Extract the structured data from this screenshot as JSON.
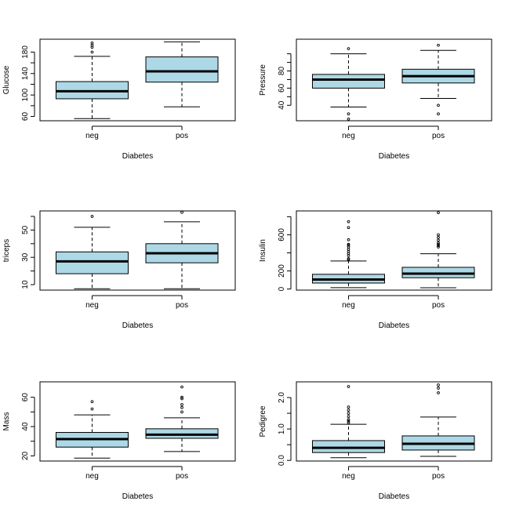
{
  "chart_data": [
    {
      "type": "boxplot",
      "panel": "top-left",
      "xlabel": "Diabetes",
      "ylabel": "Glucose",
      "categories": [
        "neg",
        "pos"
      ],
      "ylim": [
        52,
        204
      ],
      "yticks": [
        60,
        100,
        140,
        180
      ],
      "yticks_labeled": [
        "60",
        "100",
        "140",
        "180"
      ],
      "yticks_minor": [
        80,
        120,
        160
      ],
      "fill": "#add8e6",
      "boxes": [
        {
          "name": "neg",
          "q1": 93,
          "median": 107,
          "q3": 125,
          "whisker_low": 56,
          "whisker_high": 172,
          "outliers": [
            180,
            189,
            193,
            197
          ]
        },
        {
          "name": "pos",
          "q1": 124,
          "median": 144,
          "q3": 171,
          "whisker_low": 78,
          "whisker_high": 199,
          "outliers": []
        }
      ]
    },
    {
      "type": "boxplot",
      "panel": "top-right",
      "xlabel": "Diabetes",
      "ylabel": "Pressure",
      "categories": [
        "neg",
        "pos"
      ],
      "ylim": [
        22,
        117
      ],
      "yticks": [
        40,
        60,
        80
      ],
      "yticks_labeled": [
        "40",
        "60",
        "80"
      ],
      "yticks_minor": [
        50,
        70,
        90,
        100
      ],
      "fill": "#add8e6",
      "boxes": [
        {
          "name": "neg",
          "q1": 60,
          "median": 70,
          "q3": 76,
          "whisker_low": 38,
          "whisker_high": 100,
          "outliers": [
            24,
            30,
            106
          ]
        },
        {
          "name": "pos",
          "q1": 66,
          "median": 74,
          "q3": 82,
          "whisker_low": 48,
          "whisker_high": 104,
          "outliers": [
            30,
            40,
            110
          ]
        }
      ]
    },
    {
      "type": "boxplot",
      "panel": "middle-left",
      "xlabel": "Diabetes",
      "ylabel": "triceps",
      "categories": [
        "neg",
        "pos"
      ],
      "ylim": [
        6,
        64
      ],
      "yticks": [
        10,
        30,
        50
      ],
      "yticks_labeled": [
        "10",
        "30",
        "50"
      ],
      "yticks_minor": [
        20,
        40,
        60
      ],
      "fill": "#add8e6",
      "boxes": [
        {
          "name": "neg",
          "q1": 18,
          "median": 27,
          "q3": 34,
          "whisker_low": 7,
          "whisker_high": 52,
          "outliers": [
            60
          ]
        },
        {
          "name": "pos",
          "q1": 26,
          "median": 33,
          "q3": 40,
          "whisker_low": 7,
          "whisker_high": 56,
          "outliers": [
            63
          ]
        }
      ]
    },
    {
      "type": "boxplot",
      "panel": "middle-right",
      "xlabel": "Diabetes",
      "ylabel": "Insulin",
      "categories": [
        "neg",
        "pos"
      ],
      "ylim": [
        -12,
        864
      ],
      "yticks": [
        0,
        200,
        600
      ],
      "yticks_labeled": [
        "0",
        "200",
        "600"
      ],
      "yticks_minor": [
        400,
        800
      ],
      "fill": "#add8e6",
      "boxes": [
        {
          "name": "neg",
          "q1": 66,
          "median": 105,
          "q3": 163,
          "whisker_low": 15,
          "whisker_high": 310,
          "outliers": [
            325,
            335,
            370,
            392,
            415,
            440,
            465,
            485,
            495,
            545,
            680,
            745
          ]
        },
        {
          "name": "pos",
          "q1": 125,
          "median": 170,
          "q3": 240,
          "whisker_low": 14,
          "whisker_high": 390,
          "outliers": [
            465,
            480,
            495,
            510,
            540,
            570,
            600,
            845
          ]
        }
      ]
    },
    {
      "type": "boxplot",
      "panel": "bottom-left",
      "xlabel": "Diabetes",
      "ylabel": "Mass",
      "categories": [
        "neg",
        "pos"
      ],
      "ylim": [
        16.5,
        70.5
      ],
      "yticks": [
        20,
        40,
        60
      ],
      "yticks_labeled": [
        "20",
        "40",
        "60"
      ],
      "yticks_minor": [
        30,
        50
      ],
      "fill": "#add8e6",
      "boxes": [
        {
          "name": "neg",
          "q1": 26,
          "median": 31.5,
          "q3": 36,
          "whisker_low": 18.5,
          "whisker_high": 48,
          "outliers": [
            52,
            57
          ]
        },
        {
          "name": "pos",
          "q1": 32,
          "median": 34.5,
          "q3": 38.5,
          "whisker_low": 23,
          "whisker_high": 46,
          "outliers": [
            50,
            53,
            55,
            59,
            60,
            67
          ]
        }
      ]
    },
    {
      "type": "boxplot",
      "panel": "bottom-right",
      "xlabel": "Diabetes",
      "ylabel": "Pedigree",
      "categories": [
        "neg",
        "pos"
      ],
      "ylim": [
        -0.02,
        2.5
      ],
      "yticks": [
        0.0,
        1.0,
        2.0
      ],
      "yticks_labeled": [
        "0.0",
        "1.0",
        "2.0"
      ],
      "yticks_minor": [
        0.5,
        1.5
      ],
      "fill": "#add8e6",
      "boxes": [
        {
          "name": "neg",
          "q1": 0.25,
          "median": 0.4,
          "q3": 0.63,
          "whisker_low": 0.085,
          "whisker_high": 1.15,
          "outliers": [
            1.2,
            1.25,
            1.3,
            1.4,
            1.5,
            1.6,
            1.7,
            2.35
          ]
        },
        {
          "name": "pos",
          "q1": 0.33,
          "median": 0.53,
          "q3": 0.78,
          "whisker_low": 0.13,
          "whisker_high": 1.38,
          "outliers": [
            2.15,
            2.3,
            2.4
          ]
        }
      ]
    }
  ]
}
